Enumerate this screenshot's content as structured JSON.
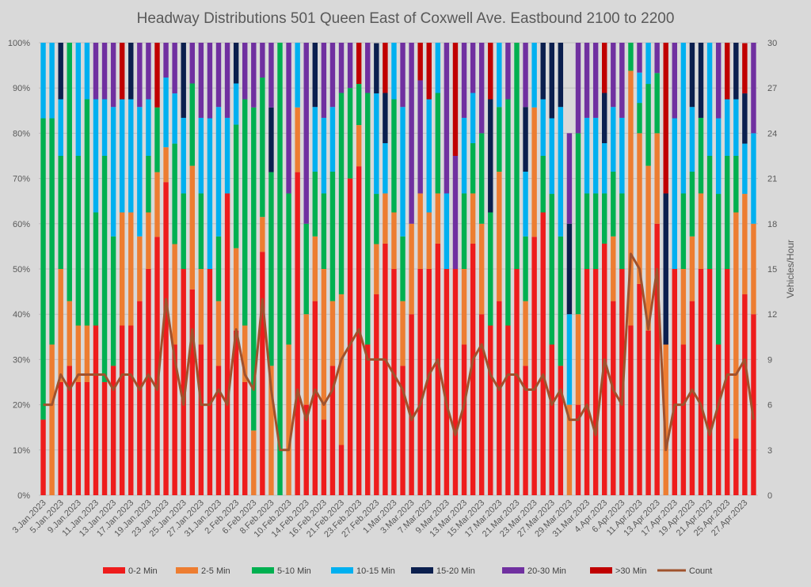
{
  "chart_data": {
    "type": "bar",
    "stacked": true,
    "percent_stacked": true,
    "title": "Headway Distributions 501 Queen  East of Coxwell Ave. Eastbound 2100 to 2200",
    "y2label": "Vehicles/Hour",
    "ylim": [
      0,
      100
    ],
    "y2lim": [
      0,
      30
    ],
    "yticks": [
      "0%",
      "10%",
      "20%",
      "30%",
      "40%",
      "50%",
      "60%",
      "70%",
      "80%",
      "90%",
      "100%"
    ],
    "y2ticks": [
      "0",
      "3",
      "6",
      "9",
      "12",
      "15",
      "18",
      "21",
      "24",
      "27",
      "30"
    ],
    "categories": [
      "3.Jan.2023",
      "4.Jan.2023",
      "5.Jan.2023",
      "6.Jan.2023",
      "9.Jan.2023",
      "10.Jan.2023",
      "11.Jan.2023",
      "12.Jan.2023",
      "13.Jan.2023",
      "16.Jan.2023",
      "17.Jan.2023",
      "18.Jan.2023",
      "19.Jan.2023",
      "20.Jan.2023",
      "23.Jan.2023",
      "24.Jan.2023",
      "25.Jan.2023",
      "26.Jan.2023",
      "27.Jan.2023",
      "30.Jan.2023",
      "31.Jan.2023",
      "1.Feb.2023",
      "2.Feb.2023",
      "3.Feb.2023",
      "6.Feb.2023",
      "7.Feb.2023",
      "8.Feb.2023",
      "9.Feb.2023",
      "10.Feb.2023",
      "13.Feb.2023",
      "14.Feb.2023",
      "15.Feb.2023",
      "16.Feb.2023",
      "17.Feb.2023",
      "21.Feb.2023",
      "22.Feb.2023",
      "23.Feb.2023",
      "24.Feb.2023",
      "27.Feb.2023",
      "28.Feb.2023",
      "1.Mar.2023",
      "2.Mar.2023",
      "3.Mar.2023",
      "6.Mar.2023",
      "7.Mar.2023",
      "8.Mar.2023",
      "9.Mar.2023",
      "10.Mar.2023",
      "13.Mar.2023",
      "14.Mar.2023",
      "15.Mar.2023",
      "16.Mar.2023",
      "17.Mar.2023",
      "20.Mar.2023",
      "21.Mar.2023",
      "22.Mar.2023",
      "23.Mar.2023",
      "24.Mar.2023",
      "27.Mar.2023",
      "28.Mar.2023",
      "29.Mar.2023",
      "30.Mar.2023",
      "31.Mar.2023",
      "3.Apr.2023",
      "4.Apr.2023",
      "5.Apr.2023",
      "6.Apr.2023",
      "10.Apr.2023",
      "11.Apr.2023",
      "12.Apr.2023",
      "13.Apr.2023",
      "14.Apr.2023",
      "17.Apr.2023",
      "18.Apr.2023",
      "19.Apr.2023",
      "20.Apr.2023",
      "21.Apr.2023",
      "24.Apr.2023",
      "25.Apr.2023",
      "26.Apr.2023",
      "27.Apr.2023",
      "28.Apr.2023"
    ],
    "visible_labels": [
      "3.Jan.2023",
      "5.Jan.2023",
      "9.Jan.2023",
      "11.Jan.2023",
      "13.Jan.2023",
      "17.Jan.2023",
      "19.Jan.2023",
      "23.Jan.2023",
      "25.Jan.2023",
      "27.Jan.2023",
      "31.Jan.2023",
      "2.Feb.2023",
      "6.Feb.2023",
      "8.Feb.2023",
      "10.Feb.2023",
      "14.Feb.2023",
      "16.Feb.2023",
      "21.Feb.2023",
      "23.Feb.2023",
      "27.Feb.2023",
      "1.Mar.2023",
      "3.Mar.2023",
      "7.Mar.2023",
      "9.Mar.2023",
      "13.Mar.2023",
      "15.Mar.2023",
      "17.Mar.2023",
      "21.Mar.2023",
      "23.Mar.2023",
      "27.Mar.2023",
      "29.Mar.2023",
      "31.Mar.2023",
      "4.Apr.2023",
      "6.Apr.2023",
      "11.Apr.2023",
      "13.Apr.2023",
      "17.Apr.2023",
      "19.Apr.2023",
      "21.Apr.2023",
      "25.Apr.2023",
      "27.Apr.2023"
    ],
    "series": [
      {
        "name": "0-2 Min",
        "color": "#ee1c1c",
        "type": "bar",
        "values": [
          16.7,
          0,
          25,
          28.6,
          25,
          25,
          37.5,
          25,
          28.6,
          37.5,
          37.5,
          42.9,
          50,
          57.1,
          69.2,
          33.3,
          50,
          45.5,
          33.3,
          50,
          28.6,
          66.7,
          36.4,
          25,
          0,
          53.8,
          0,
          0,
          0,
          71.4,
          20,
          42.9,
          16.7,
          28.6,
          11.1,
          70,
          72.7,
          33.3,
          44.4,
          55.6,
          50,
          28.6,
          40,
          50,
          50,
          55.6,
          50,
          50,
          33.3,
          55.6,
          40,
          37.5,
          42.9,
          37.5,
          50,
          28.6,
          57.1,
          62.5,
          33.3,
          28.6,
          0,
          20,
          50,
          50,
          55.6,
          42.9,
          50,
          37.5,
          46.7,
          36.4,
          60,
          0,
          50,
          33.3,
          42.9,
          50,
          50,
          33.3,
          50,
          12.5,
          44.4,
          40
        ]
      },
      {
        "name": "2-5 Min",
        "color": "#ed7d31",
        "type": "bar",
        "values": [
          0,
          33.3,
          25,
          14.3,
          12.5,
          12.5,
          0,
          0,
          0,
          25,
          25,
          14.3,
          12.5,
          14.3,
          7.7,
          22.2,
          0,
          27.3,
          16.7,
          0,
          14.3,
          0,
          18.2,
          12.5,
          14.3,
          7.7,
          28.6,
          0,
          33.3,
          14.3,
          20,
          14.3,
          33.3,
          14.3,
          33.3,
          0,
          9.1,
          0,
          11.1,
          11.1,
          12.5,
          14.3,
          20,
          16.7,
          12.5,
          11.1,
          0,
          0,
          16.7,
          11.1,
          20,
          0,
          28.6,
          0,
          0,
          14.3,
          28.6,
          0,
          0,
          0,
          20,
          20,
          0,
          0,
          0,
          14.3,
          0,
          56.3,
          33.3,
          36.4,
          20,
          33.3,
          0,
          16.7,
          14.3,
          16.7,
          0,
          0,
          0,
          50,
          22.2,
          20
        ]
      },
      {
        "name": "5-10 Min",
        "color": "#00b050",
        "type": "bar",
        "values": [
          66.6,
          50,
          25,
          57.1,
          37.5,
          50,
          25,
          50,
          28.6,
          0,
          0,
          0,
          12.5,
          14.3,
          0,
          22.2,
          16.7,
          18.2,
          16.7,
          0,
          14.3,
          0,
          27.3,
          50,
          71.4,
          30.8,
          42.8,
          100,
          33.4,
          0,
          20,
          14.3,
          16.7,
          28.6,
          44.5,
          20,
          9.1,
          55.6,
          11.1,
          0,
          25,
          14.3,
          0,
          0,
          0,
          22.2,
          0,
          0,
          16.7,
          11.1,
          20,
          25,
          14.3,
          50,
          50,
          14.3,
          0,
          12.5,
          33.3,
          28.6,
          0,
          40,
          16.7,
          16.7,
          11.1,
          14.3,
          16.7,
          6.2,
          6.7,
          18.1,
          13.3,
          0,
          0,
          16.7,
          14.3,
          16.7,
          25,
          33.3,
          25,
          12.5,
          0,
          0
        ]
      },
      {
        "name": "10-15 Min",
        "color": "#00b0f0",
        "type": "bar",
        "values": [
          16.7,
          16.7,
          12.5,
          0,
          25,
          12.5,
          25,
          12.5,
          28.6,
          25,
          25,
          28.6,
          12.5,
          0,
          15.4,
          11.1,
          16.7,
          0,
          16.7,
          33.3,
          28.6,
          16.7,
          9.1,
          0,
          0,
          0,
          0,
          0,
          0,
          14.3,
          0,
          14.3,
          16.7,
          14.3,
          0,
          0,
          0,
          0,
          22.2,
          11.1,
          12.5,
          28.6,
          0,
          0,
          25,
          11.1,
          16.7,
          0,
          16.7,
          11.1,
          0,
          0,
          14.3,
          0,
          0,
          14.3,
          14.3,
          12.5,
          16.7,
          28.6,
          20,
          0,
          16.7,
          16.7,
          11.1,
          14.3,
          16.7,
          0,
          6.7,
          9.1,
          0,
          0,
          33.3,
          33.3,
          14.3,
          0,
          25,
          16.7,
          12.5,
          12.5,
          11.1,
          20
        ]
      },
      {
        "name": "15-20 Min",
        "color": "#0b1f4e",
        "type": "bar",
        "values": [
          0,
          0,
          12.5,
          0,
          0,
          0,
          0,
          0,
          0,
          0,
          12.5,
          0,
          0,
          0,
          0,
          0,
          16.6,
          0,
          0,
          0,
          0,
          0,
          9.1,
          0,
          0,
          0,
          14.3,
          0,
          0,
          0,
          0,
          14.3,
          0,
          0,
          0,
          0,
          0,
          0,
          11.1,
          11.1,
          0,
          0,
          0,
          0,
          0,
          0,
          0,
          0,
          0,
          0,
          0,
          25,
          0,
          0,
          0,
          14.3,
          0,
          12.5,
          16.7,
          14.3,
          20,
          0,
          0,
          0,
          11.1,
          0,
          0,
          0,
          0,
          0,
          0,
          33.4,
          0,
          0,
          14.3,
          16.6,
          0,
          0,
          0,
          12.5,
          11.1,
          0
        ]
      },
      {
        "name": "20-30 Min",
        "color": "#7030a0",
        "type": "bar",
        "values": [
          0,
          0,
          0,
          0,
          0,
          0,
          12.5,
          12.5,
          14.2,
          0,
          0,
          14.2,
          12.5,
          0,
          7.7,
          11.2,
          0,
          9,
          16.6,
          16.7,
          14.2,
          16.6,
          18.1,
          12.5,
          14.3,
          7.7,
          14.3,
          0,
          33.3,
          0,
          40,
          0,
          16.6,
          14.2,
          11.1,
          10,
          0,
          11.1,
          0,
          0,
          0,
          14.2,
          40,
          25,
          0,
          0,
          33.3,
          25,
          16.6,
          11.1,
          20,
          0,
          0,
          12.5,
          0,
          14.2,
          0,
          0,
          0,
          0,
          20,
          20,
          16.6,
          16.6,
          0,
          14.2,
          16.6,
          0,
          6.6,
          0,
          6.7,
          0,
          16.7,
          0,
          0,
          0,
          0,
          16.7,
          0,
          0,
          0,
          20
        ]
      },
      {
        "name": ">30 Min",
        "color": "#c00000",
        "type": "bar",
        "values": [
          0,
          0,
          0,
          0,
          0,
          0,
          0,
          0,
          0,
          12.5,
          0,
          0,
          0,
          14.3,
          0,
          0,
          0,
          0,
          0,
          0,
          0,
          0,
          9,
          0,
          0,
          0,
          0,
          0,
          0,
          0,
          0,
          0,
          0,
          0,
          0,
          0,
          9.1,
          0,
          0,
          11.1,
          0,
          0,
          0,
          8.3,
          12.5,
          0,
          0,
          25,
          0,
          0,
          0,
          12.5,
          0,
          0,
          0,
          0,
          0,
          0,
          0,
          0,
          0,
          0,
          0,
          0,
          11.1,
          0,
          0,
          0,
          0,
          0,
          0,
          33.3,
          0,
          0,
          0,
          0,
          0,
          0,
          12.5,
          0,
          11.1,
          0
        ]
      },
      {
        "name": "Count",
        "color": "#a0522d",
        "type": "line",
        "axis": "right",
        "values": [
          6,
          6,
          8,
          7,
          8,
          8,
          8,
          8,
          7,
          8,
          8,
          7,
          8,
          7,
          13,
          9,
          6,
          11,
          6,
          6,
          7,
          6,
          11,
          8,
          7,
          13,
          7,
          3,
          3,
          7,
          5,
          7,
          6,
          7,
          9,
          10,
          11,
          9,
          9,
          9,
          8,
          7,
          5,
          6,
          8,
          9,
          6,
          4,
          6,
          9,
          10,
          8,
          7,
          8,
          8,
          7,
          7,
          8,
          6,
          7,
          5,
          5,
          6,
          4,
          9,
          7,
          6,
          16,
          15,
          11,
          15,
          3,
          6,
          6,
          7,
          6,
          4,
          6,
          8,
          8,
          9,
          5
        ]
      }
    ]
  }
}
